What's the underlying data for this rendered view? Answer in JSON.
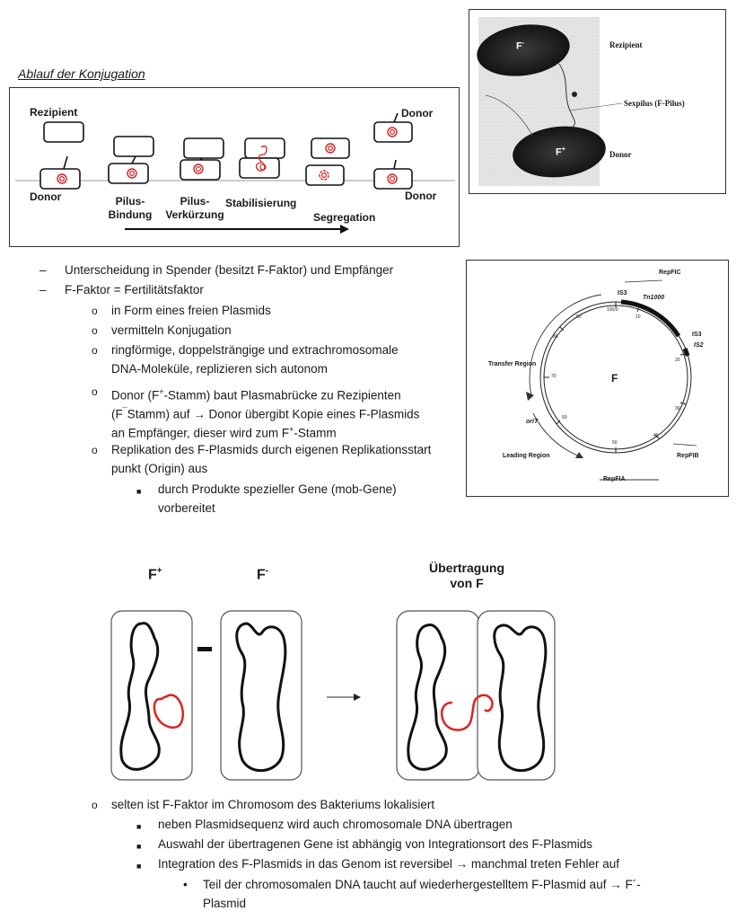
{
  "section_title": "Ablauf der Konjugation",
  "conjugation_diagram": {
    "labels": {
      "rezipient": "Rezipient",
      "donor_left": "Donor",
      "donor_top_right": "Donor",
      "donor_bottom_right": "Donor",
      "pilus_bindung_1": "Pilus-",
      "pilus_bindung_2": "Bindung",
      "pilus_verk_1": "Pilus-",
      "pilus_verk_2": "Verkürzung",
      "stabilisierung": "Stabilisierung",
      "segregation": "Segregation"
    },
    "accent_color": "#d42020"
  },
  "micrograph": {
    "f_minus": "F",
    "f_minus_sup": "-",
    "f_plus": "F",
    "f_plus_sup": "+",
    "rezipient": "Rezipient",
    "sexpilus": "Sexpilus (F-Pilus)",
    "donor": "Donor"
  },
  "bullets": {
    "b1": "Unterscheidung in Spender (besitzt F-Faktor) und Empfänger",
    "b2": "F-Faktor = Fertilitätsfaktor",
    "b2_1": "in Form eines freien Plasmids",
    "b2_2": "vermitteln Konjugation",
    "b2_3_l1": "ringförmige, doppelsträngige und extrachromosomale",
    "b2_3_l2": "DNA-Moleküle, replizieren sich autonom",
    "b2_4_l1a": "Donor (F",
    "b2_4_l1_sup": "+",
    "b2_4_l1b": "-Stamm) baut Plasmabrücke zu Rezipienten",
    "b2_4_l2a": "(F",
    "b2_4_l2_sup": "¯",
    "b2_4_l2b": "Stamm) auf → Donor übergibt Kopie eines F-Plasmids",
    "b2_4_l3a": "an Empfänger, dieser wird zum F",
    "b2_4_l3_sup": "+",
    "b2_4_l3b": "-Stamm",
    "b2_5_l1": "Replikation des F-Plasmids durch eigenen Replikationsstart",
    "b2_5_l2": "punkt (Origin) aus",
    "b2_5_1_l1": "durch Produkte spezieller Gene (mob-Gene)",
    "b2_5_1_l2": "vorbereitet"
  },
  "plasmid_map": {
    "center": "F",
    "repfic": "RepFIC",
    "is3_top": "IS3",
    "tn1000": "Tn1000",
    "is3_right": "IS3",
    "is2": "IS2",
    "transfer_region": "Transfer Region",
    "orit": "oriT",
    "leading_region": "Leading Region",
    "repfib": "RepFIB",
    "repfia": "RepFIA",
    "ticks": [
      "100/0",
      "10",
      "20",
      "30",
      "40",
      "50",
      "60",
      "70",
      "80",
      "90"
    ]
  },
  "cell_figure": {
    "f_plus": "F",
    "f_plus_sup": "+",
    "f_minus": "F",
    "f_minus_sup": "-",
    "transfer_l1": "Übertragung",
    "transfer_l2": "von F"
  },
  "bottom_bullets": {
    "c1": "selten ist F-Faktor im Chromosom des Bakteriums lokalisiert",
    "c1_1": "neben Plasmidsequenz wird auch chromosomale DNA übertragen",
    "c1_2": "Auswahl der übertragenen Gene ist abhängig von Integrationsort des F-Plasmids",
    "c1_3": "Integration des F-Plasmids in das Genom ist reversibel → manchmal treten Fehler auf",
    "c1_3_1_l1": "Teil der chromosomalen DNA taucht auf wiederhergestelltem F-Plasmid auf → F´-",
    "c1_3_1_l2": "Plasmid"
  }
}
